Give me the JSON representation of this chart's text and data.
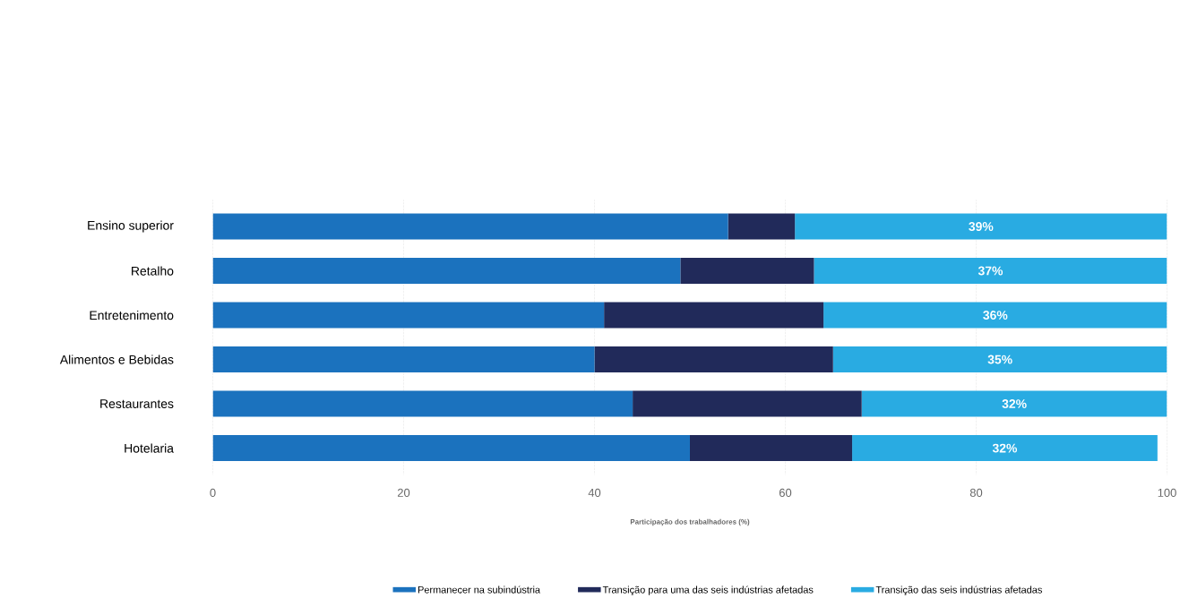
{
  "chart_data": {
    "type": "bar",
    "orientation": "horizontal",
    "stacked": true,
    "categories": [
      "Ensino superior",
      "Retalho",
      "Entretenimento",
      "Alimentos e Bebidas",
      "Restaurantes",
      "Hotelaria"
    ],
    "series": [
      {
        "name": "Permanecer na subindústria",
        "color": "#1b72be",
        "values": [
          54,
          49,
          41,
          40,
          44,
          50
        ]
      },
      {
        "name": "Transição para uma das seis indústrias afetadas",
        "color": "#212a5a",
        "values": [
          7,
          14,
          23,
          25,
          24,
          17
        ]
      },
      {
        "name": "Transição das seis indústrias afetadas",
        "color": "#29abe2",
        "values": [
          39,
          37,
          36,
          35,
          32,
          32
        ],
        "value_labels": [
          "39%",
          "37%",
          "36%",
          "35%",
          "32%",
          "32%"
        ]
      }
    ],
    "xlabel": "Participação dos trabalhadores (%)",
    "xlim": [
      0,
      100
    ],
    "xticks": [
      0,
      20,
      40,
      60,
      80,
      100
    ],
    "grid": "x",
    "legend": "bottom"
  }
}
